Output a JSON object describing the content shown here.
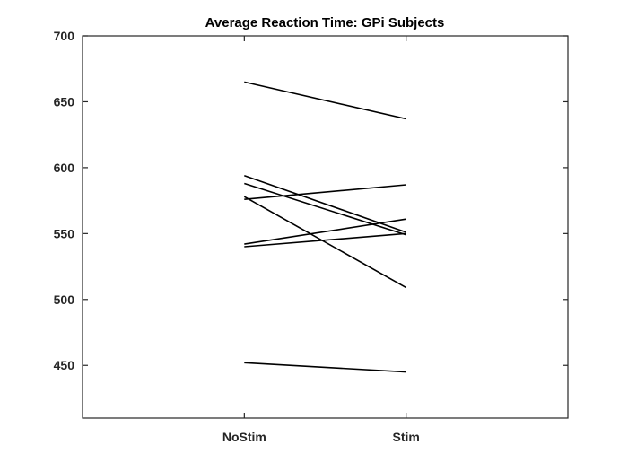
{
  "chart_data": {
    "type": "line",
    "title": "Average Reaction Time: GPi Subjects",
    "categories": [
      "NoStim",
      "Stim"
    ],
    "ylim": [
      410,
      700
    ],
    "yticks": [
      450,
      500,
      550,
      600,
      650,
      700
    ],
    "grid": false,
    "series": [
      {
        "values": [
          665,
          637
        ]
      },
      {
        "values": [
          594,
          551
        ]
      },
      {
        "values": [
          588,
          549
        ]
      },
      {
        "values": [
          576,
          587
        ]
      },
      {
        "values": [
          578,
          509
        ]
      },
      {
        "values": [
          542,
          561
        ]
      },
      {
        "values": [
          540,
          550
        ]
      },
      {
        "values": [
          452,
          445
        ]
      }
    ],
    "colors": {
      "line": "#000000",
      "axis": "#262626",
      "background": "#ffffff"
    }
  }
}
